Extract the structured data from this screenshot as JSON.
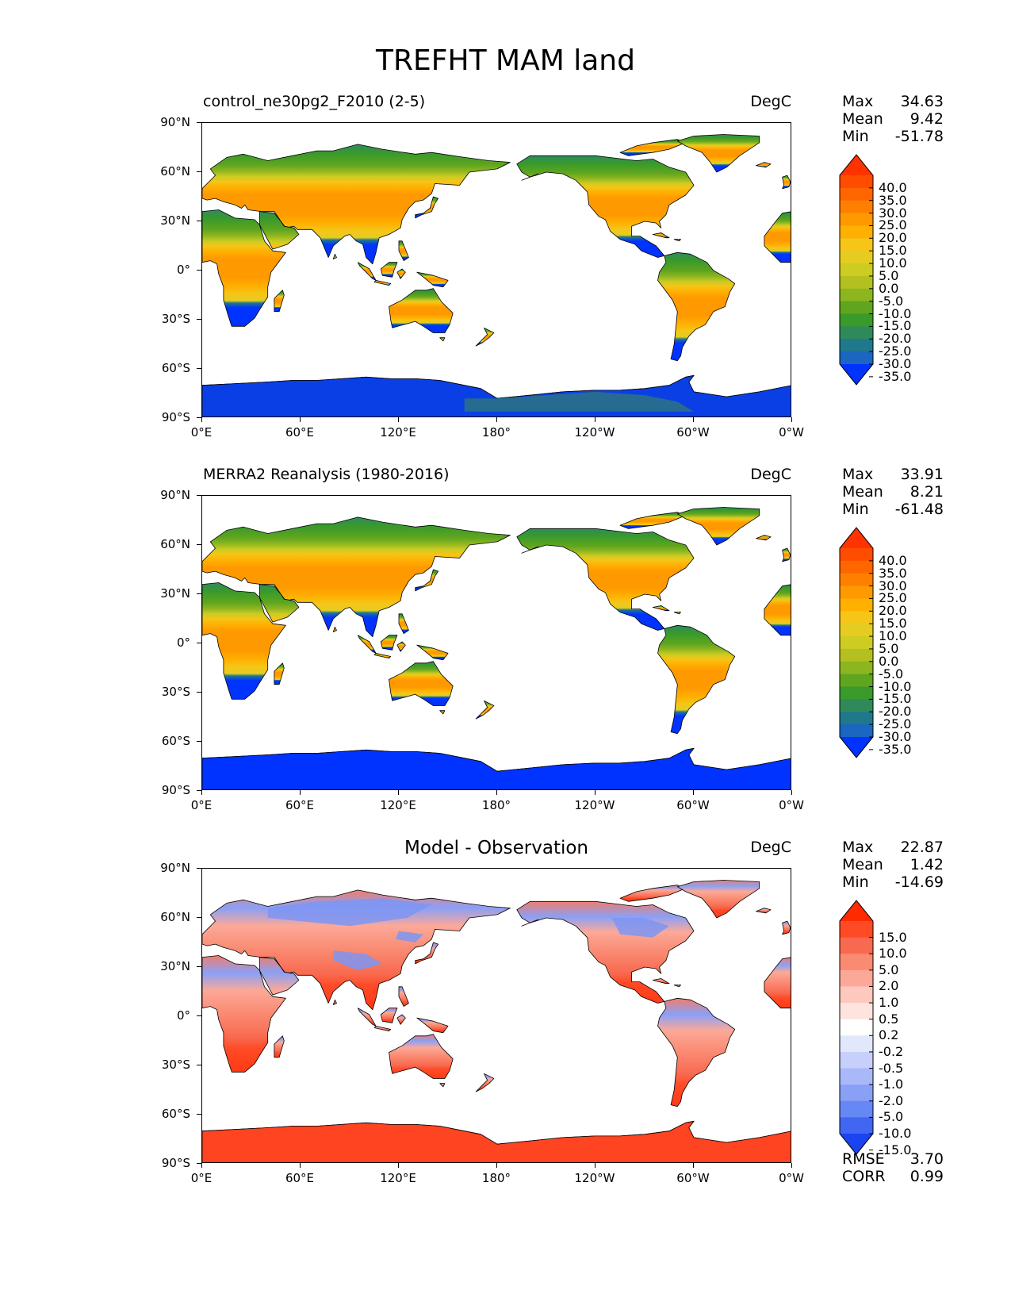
{
  "title": "TREFHT MAM land",
  "axes": {
    "lat_labels": [
      "90°N",
      "60°N",
      "30°N",
      "0°",
      "30°S",
      "60°S",
      "90°S"
    ],
    "lon_labels": [
      "0°E",
      "60°E",
      "120°E",
      "180°",
      "120°W",
      "60°W",
      "0°W"
    ]
  },
  "panels": [
    {
      "title": "control_ne30pg2_F2010 (2-5)",
      "units": "DegC",
      "stats": [
        {
          "label": "Max",
          "value": "34.63"
        },
        {
          "label": "Mean",
          "value": "9.42"
        },
        {
          "label": "Min",
          "value": "-51.78"
        }
      ],
      "colorbar": {
        "labels": [
          "40.0",
          "35.0",
          "30.0",
          "25.0",
          "20.0",
          "15.0",
          "10.0",
          "5.0",
          "0.0",
          "-5.0",
          "-10.0",
          "-15.0",
          "-20.0",
          "-25.0",
          "-30.0",
          "-35.0"
        ],
        "colors": [
          "#ff3300",
          "#ff4d00",
          "#ff6600",
          "#ff8000",
          "#ff9900",
          "#ffb000",
          "#f5c518",
          "#e6cc20",
          "#cccc22",
          "#b3c020",
          "#8cb520",
          "#5fa51f",
          "#3a9a2a",
          "#2e8a5a",
          "#20788c",
          "#1a66c0",
          "#0033ff"
        ]
      },
      "map_type": "temperature",
      "map_variant": "model"
    },
    {
      "title": "MERRA2 Reanalysis (1980-2016)",
      "units": "DegC",
      "stats": [
        {
          "label": "Max",
          "value": "33.91"
        },
        {
          "label": "Mean",
          "value": "8.21"
        },
        {
          "label": "Min",
          "value": "-61.48"
        }
      ],
      "colorbar": {
        "labels": [
          "40.0",
          "35.0",
          "30.0",
          "25.0",
          "20.0",
          "15.0",
          "10.0",
          "5.0",
          "0.0",
          "-5.0",
          "-10.0",
          "-15.0",
          "-20.0",
          "-25.0",
          "-30.0",
          "-35.0"
        ],
        "colors": [
          "#ff3300",
          "#ff4d00",
          "#ff6600",
          "#ff8000",
          "#ff9900",
          "#ffb000",
          "#f5c518",
          "#e6cc20",
          "#cccc22",
          "#b3c020",
          "#8cb520",
          "#5fa51f",
          "#3a9a2a",
          "#2e8a5a",
          "#20788c",
          "#1a66c0",
          "#0033ff"
        ]
      },
      "map_type": "temperature",
      "map_variant": "obs"
    },
    {
      "title": "Model - Observation",
      "units": "DegC",
      "stats": [
        {
          "label": "Max",
          "value": "22.87"
        },
        {
          "label": "Mean",
          "value": "1.42"
        },
        {
          "label": "Min",
          "value": "-14.69"
        }
      ],
      "extra_stats": [
        {
          "label": "RMSE",
          "value": "3.70"
        },
        {
          "label": "CORR",
          "value": "0.99"
        }
      ],
      "colorbar": {
        "labels": [
          "15.0",
          "10.0",
          "5.0",
          "2.0",
          "1.0",
          "0.5",
          "0.2",
          "-0.2",
          "-0.5",
          "-1.0",
          "-2.0",
          "-5.0",
          "-10.0",
          "-15.0"
        ],
        "colors": [
          "#ff2a00",
          "#ff4a26",
          "#f86a50",
          "#fa8a72",
          "#fca898",
          "#fdc8bd",
          "#fee4de",
          "#ffffff",
          "#e2e8fc",
          "#c6d0fa",
          "#a8b8f8",
          "#8aa0f6",
          "#6688f4",
          "#4066f2",
          "#1a44f0"
        ]
      },
      "map_type": "difference"
    }
  ]
}
